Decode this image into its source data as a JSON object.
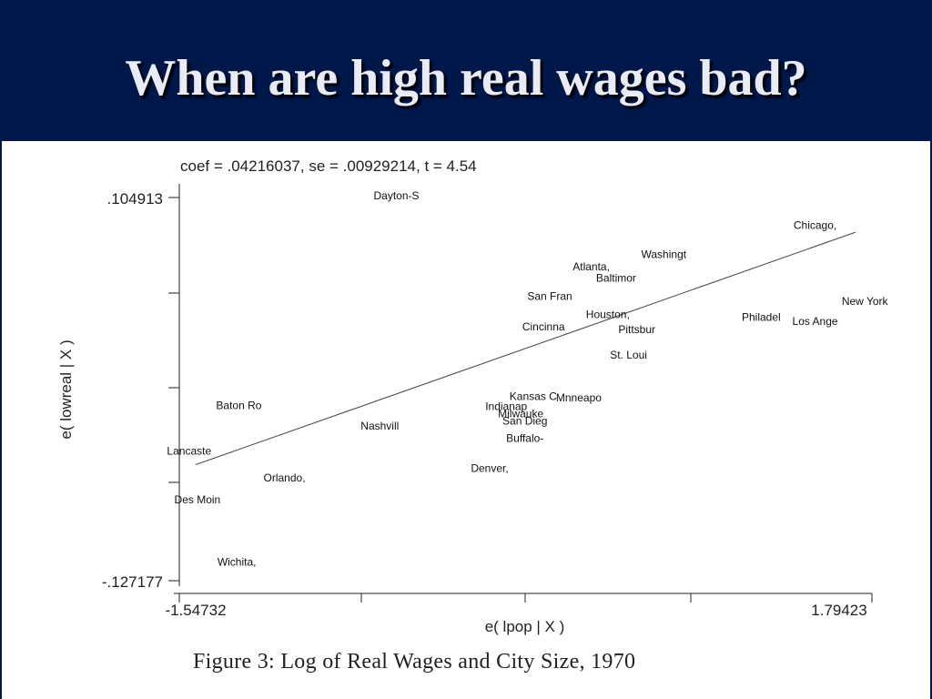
{
  "slide": {
    "title": "When are high real wages bad?",
    "caption": "Figure 3:  Log of Real Wages and City Size, 1970",
    "colors": {
      "header_bg": "#00174a",
      "title_text": "#e9ecf6"
    }
  },
  "chart_data": {
    "type": "scatter",
    "title": "coef = .04216037, se = .00929214, t = 4.54",
    "xlabel": "e( lpop | X )",
    "ylabel": "e( lowreal | X )",
    "xlim": [
      -1.54732,
      1.79423
    ],
    "ylim": [
      -0.127177,
      0.104913
    ],
    "x_tick_labels": [
      "-1.54732",
      "1.79423"
    ],
    "y_tick_labels": [
      ".104913",
      "-.127177"
    ],
    "marker": "label",
    "fit_line": {
      "x": [
        -1.54732,
        1.79423
      ],
      "y": [
        -0.0569,
        0.0839
      ]
    },
    "points": [
      {
        "label": "Dayton-S",
        "x": -0.5,
        "y": 0.106
      },
      {
        "label": "Chicago,",
        "x": 1.52,
        "y": 0.088
      },
      {
        "label": "Washingt",
        "x": 0.79,
        "y": 0.0705
      },
      {
        "label": "Atlanta,",
        "x": 0.44,
        "y": 0.063
      },
      {
        "label": "Baltimor",
        "x": 0.56,
        "y": 0.056
      },
      {
        "label": "San Fran",
        "x": 0.24,
        "y": 0.045
      },
      {
        "label": "New York",
        "x": 1.76,
        "y": 0.042
      },
      {
        "label": "Houston,",
        "x": 0.52,
        "y": 0.034
      },
      {
        "label": "Philadel",
        "x": 1.26,
        "y": 0.0325
      },
      {
        "label": "Los Ange",
        "x": 1.52,
        "y": 0.03
      },
      {
        "label": "Cincinna",
        "x": 0.21,
        "y": 0.0265
      },
      {
        "label": "Pittsbur",
        "x": 0.66,
        "y": 0.025
      },
      {
        "label": "St. Loui",
        "x": 0.62,
        "y": 0.0095
      },
      {
        "label": "Kansas C",
        "x": 0.16,
        "y": -0.0155
      },
      {
        "label": "Mnneapo",
        "x": 0.38,
        "y": -0.0165
      },
      {
        "label": "Baton Ro",
        "x": -1.26,
        "y": -0.021
      },
      {
        "label": "Indianap",
        "x": 0.03,
        "y": -0.0215
      },
      {
        "label": "Milwauke",
        "x": 0.1,
        "y": -0.026
      },
      {
        "label": "San Dieg",
        "x": 0.12,
        "y": -0.0305
      },
      {
        "label": "Nashvill",
        "x": -0.58,
        "y": -0.0335
      },
      {
        "label": "Buffalo-",
        "x": 0.12,
        "y": -0.041
      },
      {
        "label": "Lancaste",
        "x": -1.5,
        "y": -0.0485
      },
      {
        "label": "Denver,",
        "x": -0.05,
        "y": -0.059
      },
      {
        "label": "Orlando,",
        "x": -1.04,
        "y": -0.065
      },
      {
        "label": "Des Moin",
        "x": -1.46,
        "y": -0.078
      },
      {
        "label": "Wichita,",
        "x": -1.27,
        "y": -0.116
      }
    ]
  }
}
